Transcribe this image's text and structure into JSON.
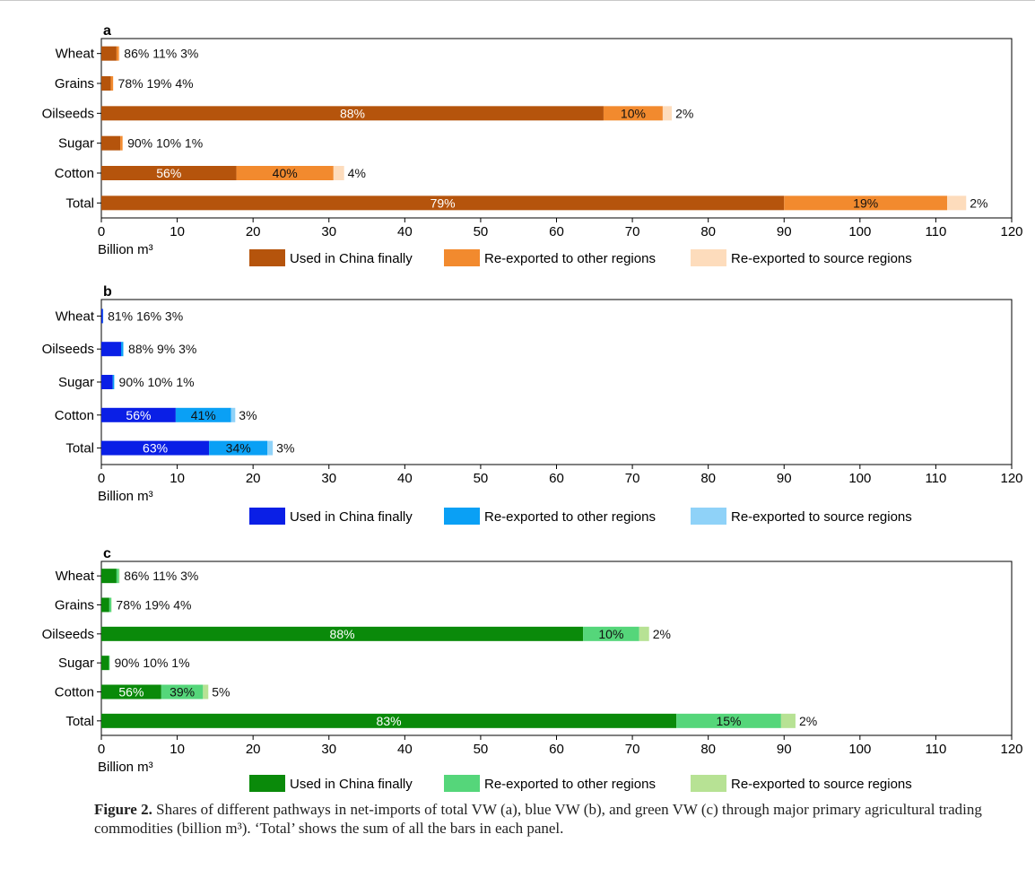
{
  "chart_data": [
    {
      "panel": "a",
      "type": "bar",
      "orientation": "horizontal",
      "stacked": true,
      "categories": [
        "Wheat",
        "Grains",
        "Oilseeds",
        "Sugar",
        "Cotton",
        "Total"
      ],
      "series": [
        {
          "name": "Used in China finally",
          "color": "#b5540c",
          "values": [
            2.0,
            1.25,
            66.2,
            2.5,
            17.8,
            90.0
          ]
        },
        {
          "name": "Re-exported to other regions",
          "color": "#f28a2e",
          "values": [
            0.3,
            0.3,
            7.8,
            0.3,
            12.8,
            21.5
          ]
        },
        {
          "name": "Re-exported to source regions",
          "color": "#fddcbc",
          "values": [
            0.1,
            0.05,
            1.2,
            0.05,
            1.4,
            2.5
          ]
        }
      ],
      "labels": [
        [
          "86%",
          "11%",
          "3%"
        ],
        [
          "78%",
          "19%",
          "4%"
        ],
        [
          "88%",
          "10%",
          "2%"
        ],
        [
          "90%",
          "10%",
          "1%"
        ],
        [
          "56%",
          "40%",
          "4%"
        ],
        [
          "79%",
          "19%",
          "2%"
        ]
      ],
      "xlabel": "Billion m³",
      "xlim": [
        0,
        120
      ],
      "xticks": [
        0,
        10,
        20,
        30,
        40,
        50,
        60,
        70,
        80,
        90,
        100,
        110,
        120
      ],
      "legend_position": "bottom"
    },
    {
      "panel": "b",
      "type": "bar",
      "orientation": "horizontal",
      "stacked": true,
      "categories": [
        "Wheat",
        "Oilseeds",
        "Sugar",
        "Cotton",
        "Total"
      ],
      "series": [
        {
          "name": "Used in China finally",
          "color": "#0a1fe6",
          "values": [
            0.2,
            2.6,
            1.5,
            9.8,
            14.2
          ]
        },
        {
          "name": "Re-exported to other regions",
          "color": "#0aa0f5",
          "values": [
            0.04,
            0.27,
            0.2,
            7.3,
            7.7
          ]
        },
        {
          "name": "Re-exported to source regions",
          "color": "#8fd2f8",
          "values": [
            0.01,
            0.09,
            0.02,
            0.55,
            0.7
          ]
        }
      ],
      "labels": [
        [
          "81%",
          "16%",
          "3%"
        ],
        [
          "88%",
          "9%",
          "3%"
        ],
        [
          "90%",
          "10%",
          "1%"
        ],
        [
          "56%",
          "41%",
          "3%"
        ],
        [
          "63%",
          "34%",
          "3%"
        ]
      ],
      "xlabel": "Billion m³",
      "xlim": [
        0,
        120
      ],
      "xticks": [
        0,
        10,
        20,
        30,
        40,
        50,
        60,
        70,
        80,
        90,
        100,
        110,
        120
      ],
      "legend_position": "bottom"
    },
    {
      "panel": "c",
      "type": "bar",
      "orientation": "horizontal",
      "stacked": true,
      "categories": [
        "Wheat",
        "Grains",
        "Oilseeds",
        "Sugar",
        "Cotton",
        "Total"
      ],
      "series": [
        {
          "name": "Used in China finally",
          "color": "#0a8a0a",
          "values": [
            2.0,
            1.05,
            63.5,
            1.0,
            7.9,
            75.8
          ]
        },
        {
          "name": "Re-exported to other regions",
          "color": "#55d67a",
          "values": [
            0.3,
            0.25,
            7.4,
            0.1,
            5.5,
            13.8
          ]
        },
        {
          "name": "Re-exported to source regions",
          "color": "#b7e294",
          "values": [
            0.1,
            0.05,
            1.3,
            0.02,
            0.7,
            1.9
          ]
        }
      ],
      "labels": [
        [
          "86%",
          "11%",
          "3%"
        ],
        [
          "78%",
          "19%",
          "4%"
        ],
        [
          "88%",
          "10%",
          "2%"
        ],
        [
          "90%",
          "10%",
          "1%"
        ],
        [
          "56%",
          "39%",
          "5%"
        ],
        [
          "83%",
          "15%",
          "2%"
        ]
      ],
      "xlabel": "Billion m³",
      "xlim": [
        0,
        120
      ],
      "xticks": [
        0,
        10,
        20,
        30,
        40,
        50,
        60,
        70,
        80,
        90,
        100,
        110,
        120
      ],
      "legend_position": "bottom"
    }
  ],
  "caption": {
    "label": "Figure 2.",
    "text": " Shares of different pathways in net-imports of total VW (a), blue VW (b), and green VW (c) through major primary agricultural trading commodities (billion m³). ‘Total’ shows the sum of all the bars in each panel."
  }
}
